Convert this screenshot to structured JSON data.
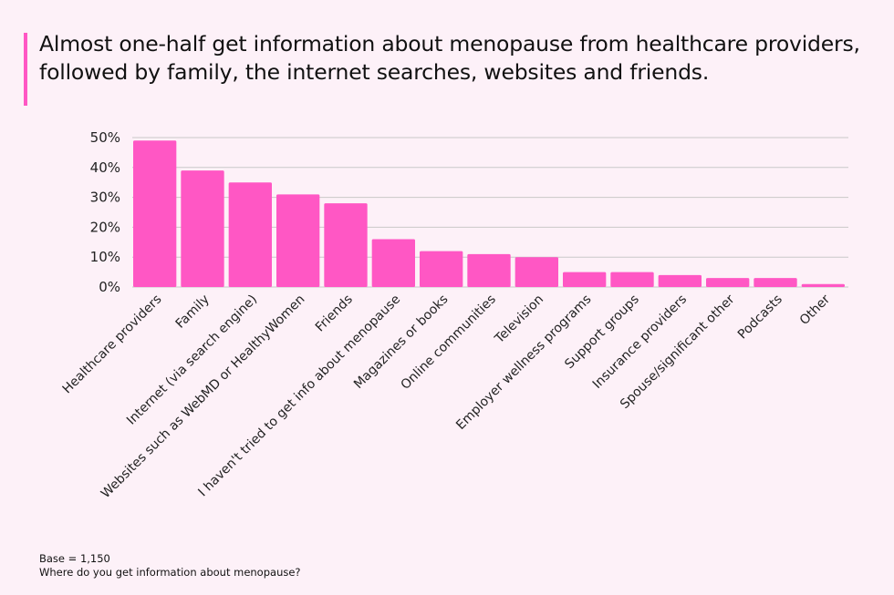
{
  "chart_data": {
    "type": "bar",
    "title": "Almost one-half get information about menopause from healthcare providers, followed by family, the internet searches, websites and friends.",
    "categories": [
      "Healthcare providers",
      "Family",
      "Internet (via search engine)",
      "Websites such as WebMD or HealthyWomen",
      "Friends",
      "I haven't tried to get info about menopause",
      "Magazines or books",
      "Online communities",
      "Television",
      "Employer wellness programs",
      "Support groups",
      "Insurance providers",
      "Spouse/significant other",
      "Podcasts",
      "Other"
    ],
    "values": [
      49,
      39,
      35,
      31,
      28,
      16,
      12,
      11,
      10,
      5,
      5,
      4,
      3,
      3,
      1
    ],
    "yticks": [
      "0%",
      "10%",
      "20%",
      "30%",
      "40%",
      "50%"
    ],
    "ylim": [
      0,
      50
    ],
    "grid": true,
    "bar_color": "#ff57c4",
    "accent_color": "#ff57c4"
  },
  "footer": {
    "base": "Base = 1,150",
    "question": "Where do you get information about menopause?"
  }
}
